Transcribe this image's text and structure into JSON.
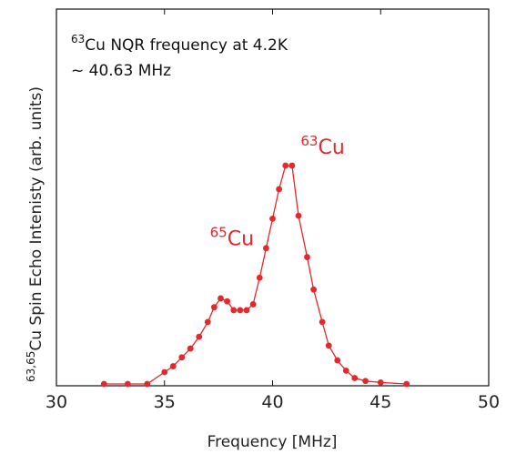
{
  "chart_data": {
    "type": "line",
    "title": "",
    "xlabel": "Frequency [MHz]",
    "ylabel_sup": "63,65",
    "ylabel_main": "Cu Spin Echo Intenisty (arb. units)",
    "xlim": [
      30,
      50
    ],
    "ylim": [
      0,
      1.0
    ],
    "x_ticks": [
      "30",
      "35",
      "40",
      "45",
      "50"
    ],
    "grid": false,
    "legend": "none",
    "annotation": {
      "line1_sup": "63",
      "line1_main": "Cu NQR frequency at 4.2K",
      "line2": "~ 40.63 MHz"
    },
    "peak_labels": [
      {
        "sup": "65",
        "text": "Cu",
        "x": 37.1,
        "y": 0.47
      },
      {
        "sup": "63",
        "text": "Cu",
        "x": 41.3,
        "y": 0.78
      }
    ],
    "series": [
      {
        "color": "#e3292b",
        "x": [
          32.2,
          33.3,
          34.2,
          35.0,
          35.4,
          35.8,
          36.2,
          36.6,
          37.0,
          37.3,
          37.6,
          37.9,
          38.2,
          38.5,
          38.8,
          39.1,
          39.4,
          39.7,
          40.0,
          40.3,
          40.6,
          40.9,
          41.2,
          41.6,
          41.9,
          42.3,
          42.6,
          43.0,
          43.4,
          43.8,
          44.3,
          45.0,
          46.2
        ],
        "y": [
          0.0,
          0.0,
          0.0,
          0.04,
          0.06,
          0.09,
          0.12,
          0.16,
          0.21,
          0.26,
          0.29,
          0.28,
          0.25,
          0.25,
          0.25,
          0.27,
          0.36,
          0.46,
          0.56,
          0.66,
          0.74,
          0.74,
          0.57,
          0.43,
          0.32,
          0.21,
          0.13,
          0.08,
          0.045,
          0.02,
          0.01,
          0.005,
          0.0
        ]
      }
    ]
  }
}
